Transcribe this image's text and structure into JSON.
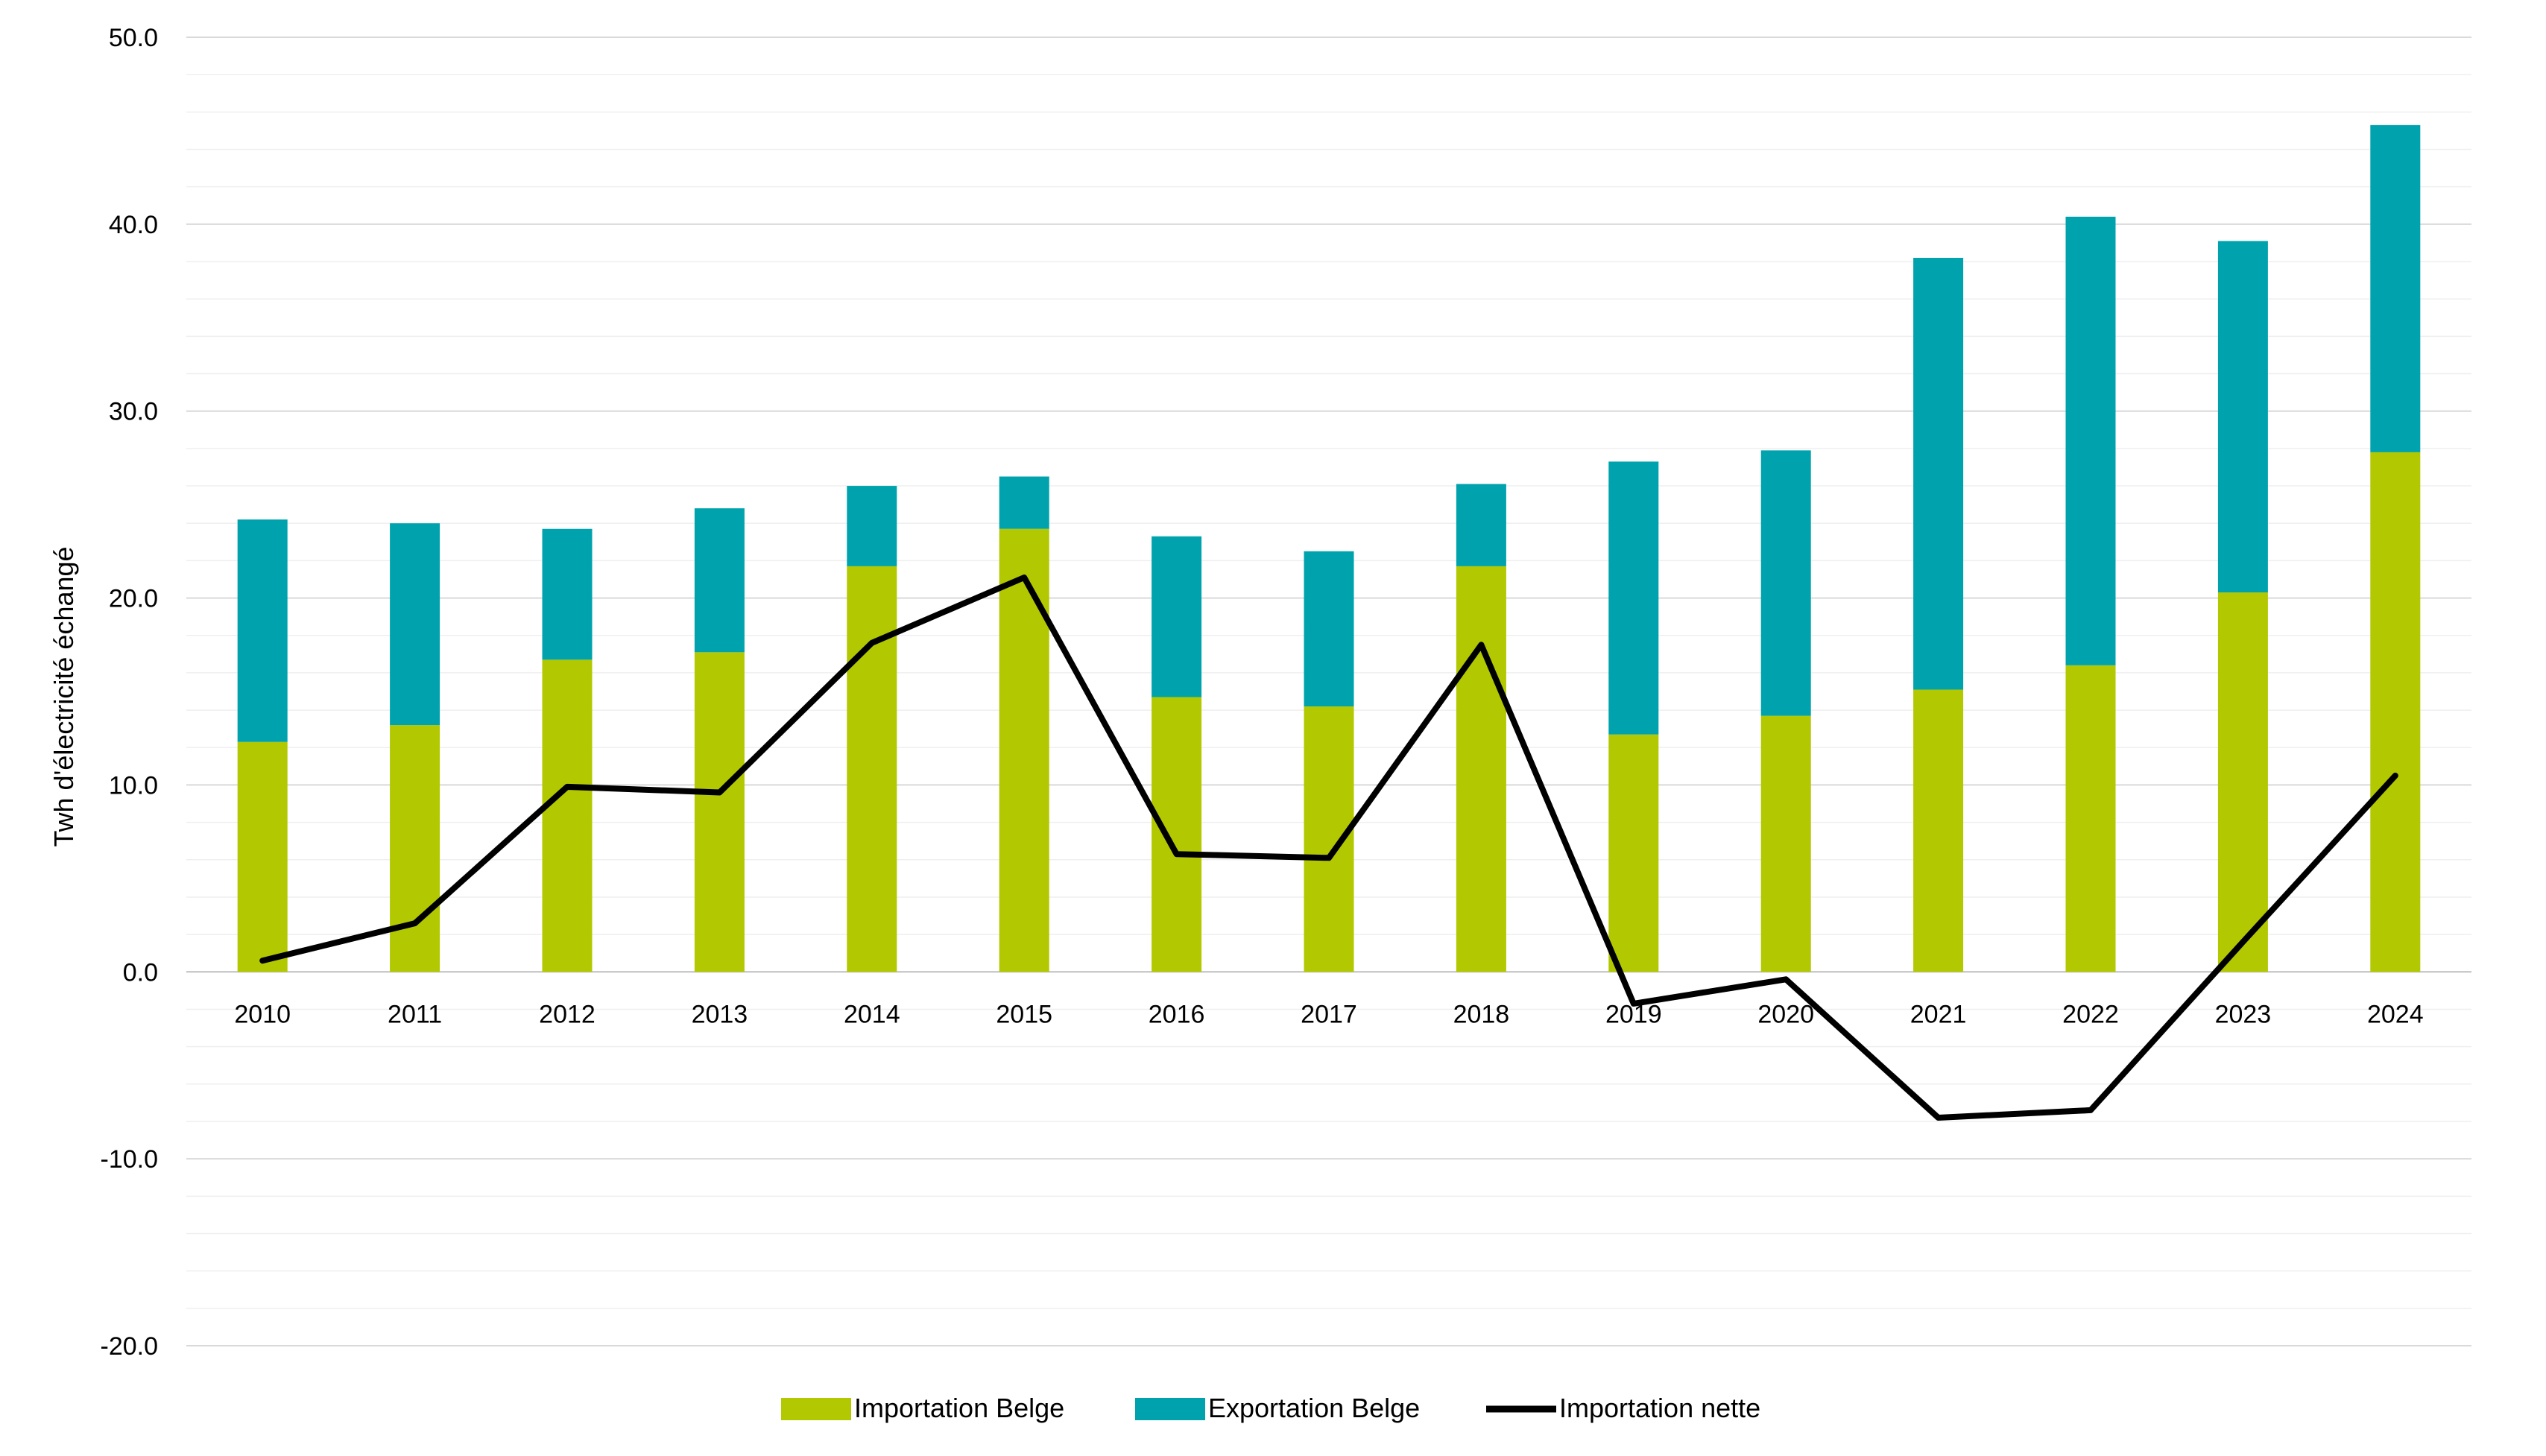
{
  "chart_data": {
    "type": "bar",
    "stacked": true,
    "title": "",
    "xlabel": "",
    "ylabel": "Twh d'électricité échangé",
    "ylim": [
      -20,
      50
    ],
    "yticks": [
      "50.0",
      "40.0",
      "30.0",
      "20.0",
      "10.0",
      "0.0",
      "-10.0",
      "-20.0"
    ],
    "grid": true,
    "legend_position": "bottom",
    "categories": [
      "2010",
      "2011",
      "2012",
      "2013",
      "2014",
      "2015",
      "2016",
      "2017",
      "2018",
      "2019",
      "2020",
      "2021",
      "2022",
      "2023",
      "2024"
    ],
    "series": [
      {
        "name": "Importation Belge",
        "type": "bar",
        "color": "#b2c800",
        "values": [
          12.3,
          13.2,
          16.7,
          17.1,
          21.7,
          23.7,
          14.7,
          14.2,
          21.7,
          12.7,
          13.7,
          15.1,
          16.4,
          20.3,
          27.8
        ]
      },
      {
        "name": "Exportation Belge",
        "type": "bar",
        "color": "#00a3ad",
        "values": [
          11.9,
          10.8,
          7.0,
          7.7,
          4.3,
          2.8,
          8.6,
          8.3,
          4.4,
          14.6,
          14.2,
          23.1,
          24.0,
          18.8,
          17.5
        ]
      },
      {
        "name": "Importation nette",
        "type": "line",
        "color": "#000000",
        "values": [
          0.6,
          2.6,
          9.9,
          9.6,
          17.6,
          21.1,
          6.3,
          6.1,
          17.5,
          -1.7,
          -0.4,
          -7.8,
          -7.4,
          1.6,
          10.5
        ]
      }
    ]
  }
}
